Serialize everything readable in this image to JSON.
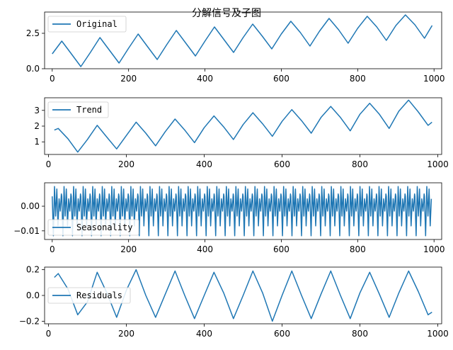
{
  "figure": {
    "title": "分解信号及子图"
  },
  "colors": {
    "series": "#1f77b4"
  },
  "chart_data": [
    {
      "type": "line",
      "xlim": [
        -20,
        1020
      ],
      "ylim": [
        0.0,
        4.0
      ],
      "xticks": [
        0,
        200,
        400,
        600,
        800,
        1000
      ],
      "yticks": [
        0.0,
        2.5
      ],
      "ytick_labels": [
        "0.0",
        "2.5"
      ],
      "legend": "upper-left",
      "series": [
        {
          "name": "Original",
          "x": [
            0,
            25,
            50,
            75,
            100,
            125,
            150,
            175,
            200,
            225,
            250,
            275,
            300,
            325,
            350,
            375,
            400,
            425,
            450,
            475,
            500,
            525,
            550,
            575,
            600,
            625,
            650,
            675,
            700,
            725,
            750,
            775,
            800,
            825,
            850,
            875,
            900,
            925,
            950,
            975,
            995
          ],
          "y": [
            1.05,
            1.95,
            1.05,
            0.15,
            1.15,
            2.2,
            1.3,
            0.4,
            1.45,
            2.45,
            1.55,
            0.65,
            1.7,
            2.7,
            1.8,
            0.9,
            1.95,
            2.95,
            2.05,
            1.15,
            2.2,
            3.15,
            2.3,
            1.4,
            2.45,
            3.35,
            2.55,
            1.6,
            2.65,
            3.55,
            2.75,
            1.8,
            2.85,
            3.7,
            2.95,
            2.0,
            3.05,
            3.8,
            3.1,
            2.15,
            3.05
          ]
        }
      ]
    },
    {
      "type": "line",
      "xlim": [
        -10,
        1010
      ],
      "ylim": [
        0.2,
        3.8
      ],
      "xticks": [
        0,
        200,
        400,
        600,
        800,
        1000
      ],
      "yticks": [
        1,
        2,
        3
      ],
      "ytick_labels": [
        "1",
        "2",
        "3"
      ],
      "legend": "upper-left",
      "series": [
        {
          "name": "Trend",
          "x": [
            15,
            25,
            50,
            75,
            100,
            125,
            150,
            175,
            200,
            225,
            250,
            275,
            300,
            325,
            350,
            375,
            400,
            425,
            450,
            475,
            500,
            525,
            550,
            575,
            600,
            625,
            650,
            675,
            700,
            725,
            750,
            775,
            800,
            825,
            850,
            875,
            900,
            925,
            950,
            975,
            985
          ],
          "y": [
            1.75,
            1.85,
            1.2,
            0.35,
            1.15,
            2.05,
            1.3,
            0.55,
            1.4,
            2.25,
            1.55,
            0.75,
            1.65,
            2.45,
            1.75,
            0.95,
            1.9,
            2.65,
            1.95,
            1.15,
            2.1,
            2.85,
            2.15,
            1.35,
            2.3,
            3.05,
            2.35,
            1.55,
            2.55,
            3.25,
            2.55,
            1.7,
            2.75,
            3.45,
            2.75,
            1.85,
            2.95,
            3.65,
            2.9,
            2.05,
            2.25
          ]
        }
      ]
    },
    {
      "type": "line",
      "xlim": [
        -20,
        1020
      ],
      "ylim": [
        -0.0135,
        0.0095
      ],
      "xticks": [
        0,
        200,
        400,
        600,
        800,
        1000
      ],
      "yticks": [
        0.0,
        -0.01
      ],
      "ytick_labels": [
        "0.00",
        "−0.01"
      ],
      "legend": "lower-left",
      "period": 25,
      "series": [
        {
          "name": "Seasonality",
          "x": [
            0,
            3,
            6,
            9,
            12,
            15,
            18,
            21,
            24
          ],
          "y": [
            0.004,
            -0.012,
            0.008,
            -0.004,
            0.007,
            -0.008,
            0.003,
            -0.002,
            0.005
          ]
        }
      ]
    },
    {
      "type": "line",
      "xlim": [
        -10,
        1010
      ],
      "ylim": [
        -0.22,
        0.22
      ],
      "xticks": [
        0,
        200,
        400,
        600,
        800,
        1000
      ],
      "yticks": [
        0.2,
        0.0,
        -0.2
      ],
      "ytick_labels": [
        "0.2",
        "0.0",
        "−0.2"
      ],
      "legend": "center-left",
      "series": [
        {
          "name": "Residuals",
          "x": [
            15,
            25,
            50,
            75,
            100,
            125,
            150,
            175,
            200,
            225,
            250,
            275,
            300,
            325,
            350,
            375,
            400,
            425,
            450,
            475,
            500,
            525,
            550,
            575,
            600,
            625,
            650,
            675,
            700,
            725,
            750,
            775,
            800,
            825,
            850,
            875,
            900,
            925,
            950,
            975,
            985
          ],
          "y": [
            0.14,
            0.17,
            0.05,
            -0.15,
            -0.05,
            0.18,
            0.02,
            -0.17,
            0.04,
            0.2,
            0.0,
            -0.17,
            0.01,
            0.19,
            0.0,
            -0.18,
            0.0,
            0.18,
            0.02,
            -0.18,
            0.0,
            0.19,
            0.02,
            -0.2,
            0.0,
            0.19,
            0.0,
            -0.18,
            0.01,
            0.19,
            0.0,
            -0.18,
            0.02,
            0.18,
            0.01,
            -0.17,
            0.02,
            0.19,
            0.03,
            -0.15,
            -0.13
          ]
        }
      ]
    }
  ]
}
